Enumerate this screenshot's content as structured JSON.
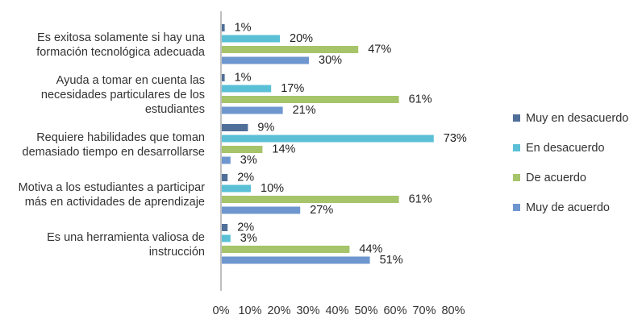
{
  "chart_data": {
    "type": "bar",
    "orientation": "horizontal",
    "categories": [
      [
        "Es exitosa solamente si hay una",
        "formación tecnológica adecuada"
      ],
      [
        "Ayuda a tomar en cuenta las",
        "necesidades particulares de los",
        "estudiantes"
      ],
      [
        "Requiere habilidades que toman",
        "demasiado tiempo en desarrollarse"
      ],
      [
        "Motiva a los estudiantes a participar",
        "más en actividades de aprendizaje"
      ],
      [
        "Es una herramienta valiosa de",
        "instrucción"
      ]
    ],
    "series": [
      {
        "name": "Muy en desacuerdo",
        "color": "#4f6f99",
        "values": [
          1,
          1,
          9,
          2,
          2
        ]
      },
      {
        "name": "En desacuerdo",
        "color": "#5bc0d6",
        "values": [
          20,
          17,
          73,
          10,
          3
        ]
      },
      {
        "name": "De acuerdo",
        "color": "#a6c46a",
        "values": [
          47,
          61,
          14,
          61,
          44
        ]
      },
      {
        "name": "Muy de acuerdo",
        "color": "#6f97cf",
        "values": [
          30,
          21,
          3,
          27,
          51
        ]
      }
    ],
    "xlim": [
      0,
      80
    ],
    "xticks": [
      0,
      10,
      20,
      30,
      40,
      50,
      60,
      70,
      80
    ],
    "tick_suffix": "%",
    "value_suffix": "%",
    "legend_position": "right",
    "grid": false
  }
}
